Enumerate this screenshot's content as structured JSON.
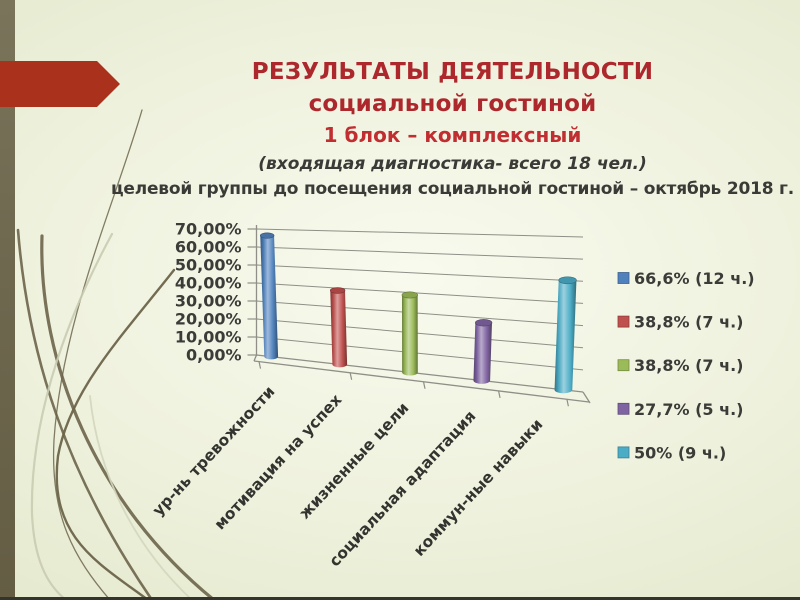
{
  "slide": {
    "title": {
      "line1": "РЕЗУЛЬТАТЫ ДЕЯТЕЛЬНОСТИ",
      "line2": "социальной гостиной",
      "line3": "1 блок – комплексный",
      "line4": "(входящая диагностика- всего 18 чел.)",
      "line5": "целевой группы до посещения социальной гостиной – октябрь 2018 г."
    },
    "accent_colors": {
      "title_red": "#ad282c",
      "subtitle_red": "#c02e31",
      "body_text": "#3a3a36",
      "left_stripe": "#6e684f",
      "arrow_red": "#aa321c",
      "background": "#ebeed9"
    }
  },
  "chart_data": {
    "type": "bar",
    "style": "3d-cylinder",
    "categories": [
      "ур-нь тревожности",
      "мотивация на успех",
      "жизненные цели",
      "социальная адаптация",
      "коммун-ные навыки"
    ],
    "values": [
      66.6,
      38.8,
      38.8,
      27.7,
      50
    ],
    "unit": "%",
    "series_colors": [
      "#4f81bd",
      "#c0504d",
      "#9bbb59",
      "#8064a2",
      "#4bacc6"
    ],
    "legend_entries": [
      "66,6% (12 ч.)",
      "38,8% (7 ч.)",
      "38,8% (7 ч.)",
      "27,7% (5 ч.)",
      "50% (9 ч.)"
    ],
    "legend_position": "right",
    "grid": true,
    "y_axis": {
      "min": 0,
      "max": 70,
      "step": 10,
      "tick_labels": [
        "0,00%",
        "10,00%",
        "20,00%",
        "30,00%",
        "40,00%",
        "50,00%",
        "60,00%",
        "70,00%"
      ]
    }
  }
}
